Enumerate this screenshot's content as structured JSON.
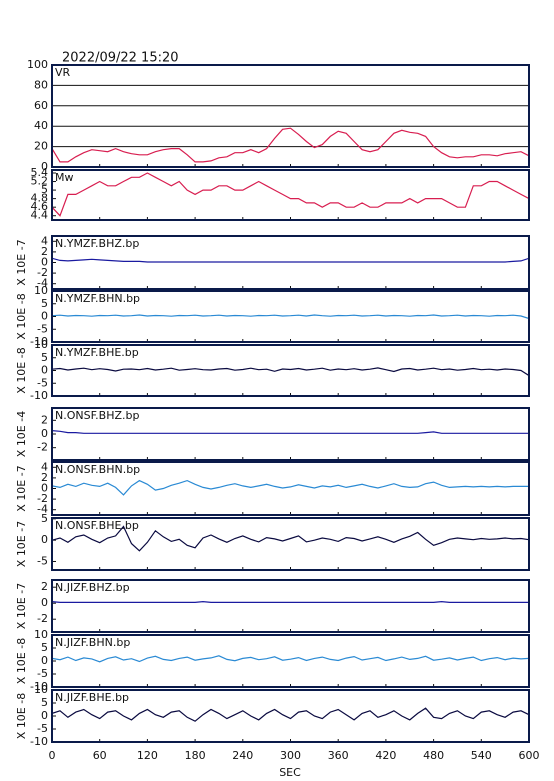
{
  "chart_data": {
    "type": "line",
    "title": "2022/09/22 15:20",
    "xlabel": "SEC",
    "xlim": [
      0,
      600
    ],
    "xticks": [
      0,
      60,
      120,
      180,
      240,
      300,
      360,
      420,
      480,
      540,
      600
    ],
    "x": [
      0,
      10,
      20,
      30,
      40,
      50,
      60,
      70,
      80,
      90,
      100,
      110,
      120,
      130,
      140,
      150,
      160,
      170,
      180,
      190,
      200,
      210,
      220,
      230,
      240,
      250,
      260,
      270,
      280,
      290,
      300,
      310,
      320,
      330,
      340,
      350,
      360,
      370,
      380,
      390,
      400,
      410,
      420,
      430,
      440,
      450,
      460,
      470,
      480,
      490,
      500,
      510,
      520,
      530,
      540,
      550,
      560,
      570,
      580,
      590,
      600
    ],
    "panels": [
      {
        "label": "VR",
        "color": "#d81e50",
        "grid": true,
        "ylim": [
          0,
          100
        ],
        "yticks": [
          0,
          20,
          40,
          60,
          80,
          100
        ],
        "values": [
          18,
          5,
          5,
          10,
          14,
          17,
          16,
          15,
          18,
          15,
          13,
          12,
          12,
          15,
          17,
          18,
          18,
          12,
          5,
          5,
          6,
          9,
          10,
          14,
          14,
          17,
          14,
          18,
          28,
          37,
          38,
          32,
          25,
          19,
          22,
          30,
          35,
          33,
          25,
          17,
          15,
          17,
          25,
          33,
          36,
          34,
          33,
          30,
          20,
          14,
          10,
          9,
          10,
          10,
          12,
          12,
          11,
          13,
          14,
          15,
          11
        ]
      },
      {
        "label": "Mw",
        "color": "#d81e50",
        "grid": false,
        "ylim": [
          4.3,
          5.47
        ],
        "yticks": [
          4.4,
          4.6,
          4.8,
          5,
          5.2,
          5.4
        ],
        "values": [
          4.6,
          4.4,
          4.9,
          4.9,
          5.0,
          5.1,
          5.2,
          5.1,
          5.1,
          5.2,
          5.3,
          5.3,
          5.4,
          5.3,
          5.2,
          5.1,
          5.2,
          5.0,
          4.9,
          5.0,
          5.0,
          5.1,
          5.1,
          5.0,
          5.0,
          5.1,
          5.2,
          5.1,
          5.0,
          4.9,
          4.8,
          4.8,
          4.7,
          4.7,
          4.6,
          4.7,
          4.7,
          4.6,
          4.6,
          4.7,
          4.6,
          4.6,
          4.7,
          4.7,
          4.7,
          4.8,
          4.7,
          4.8,
          4.8,
          4.8,
          4.7,
          4.6,
          4.6,
          5.1,
          5.1,
          5.2,
          5.2,
          5.1,
          5.0,
          4.9,
          4.8
        ]
      },
      {
        "label": "N.YMZF.BHZ.bp",
        "scale_label": "X 10E -7",
        "color": "#1a1aa0",
        "grid": false,
        "ylim": [
          -5,
          5
        ],
        "yticks": [
          -4,
          -2,
          0,
          2,
          4
        ],
        "values": [
          0.8,
          0.4,
          0.3,
          0.4,
          0.5,
          0.6,
          0.5,
          0.4,
          0.3,
          0.2,
          0.2,
          0.2,
          0.1,
          0.1,
          0.1,
          0.1,
          0.1,
          0.1,
          0.1,
          0.1,
          0.1,
          0.1,
          0.1,
          0.1,
          0.1,
          0.1,
          0.1,
          0.1,
          0.1,
          0.1,
          0.1,
          0.1,
          0.1,
          0.1,
          0.1,
          0.1,
          0.1,
          0.1,
          0.1,
          0.1,
          0.1,
          0.1,
          0.1,
          0.1,
          0.1,
          0.1,
          0.1,
          0.1,
          0.1,
          0.1,
          0.1,
          0.1,
          0.1,
          0.1,
          0.1,
          0.1,
          0.1,
          0.1,
          0.2,
          0.3,
          0.8
        ]
      },
      {
        "label": "N.YMZF.BHN.bp",
        "scale_label": "X 10E -8",
        "color": "#2a8ad4",
        "grid": false,
        "ylim": [
          -10,
          10
        ],
        "yticks": [
          -10,
          -5,
          0,
          5,
          10
        ],
        "values": [
          0.3,
          0.5,
          0.2,
          0.4,
          0.3,
          0.1,
          0.4,
          0.3,
          0.5,
          0.2,
          0.3,
          0.6,
          0.2,
          0.4,
          0.3,
          0.1,
          0.4,
          0.3,
          0.5,
          0.2,
          0.3,
          0.5,
          0.2,
          0.4,
          0.3,
          0.1,
          0.4,
          0.3,
          0.5,
          0.2,
          0.3,
          0.5,
          0.2,
          0.6,
          0.3,
          0.1,
          0.4,
          0.3,
          0.5,
          0.2,
          0.3,
          0.5,
          0.2,
          0.4,
          0.3,
          0.1,
          0.4,
          0.3,
          0.6,
          0.2,
          0.3,
          0.5,
          0.2,
          0.4,
          0.3,
          0.1,
          0.4,
          0.3,
          0.5,
          0.2,
          -0.8
        ]
      },
      {
        "label": "N.YMZF.BHE.bp",
        "scale_label": "X 10E -8",
        "color": "#0a0a40",
        "grid": false,
        "ylim": [
          -10,
          10
        ],
        "yticks": [
          -10,
          -5,
          0,
          5,
          10
        ],
        "values": [
          0.5,
          0.8,
          0.2,
          0.6,
          0.9,
          0.3,
          0.7,
          0.4,
          -0.2,
          0.5,
          0.6,
          0.3,
          0.8,
          0.2,
          0.5,
          0.9,
          0.1,
          0.4,
          0.7,
          0.3,
          0.2,
          0.6,
          0.8,
          0.1,
          0.4,
          0.9,
          0.3,
          0.5,
          -0.3,
          0.6,
          0.4,
          0.8,
          0.2,
          0.5,
          0.9,
          0.1,
          0.6,
          0.3,
          0.7,
          0.2,
          0.5,
          1.0,
          0.3,
          -0.4,
          0.6,
          0.8,
          0.2,
          0.5,
          0.9,
          0.3,
          0.6,
          0.1,
          0.4,
          0.8,
          0.3,
          0.5,
          0.2,
          0.6,
          0.4,
          0.0,
          -2.0
        ]
      },
      {
        "label": "N.ONSF.BHZ.bp",
        "scale_label": "X 10E -4",
        "color": "#1a1aa0",
        "grid": false,
        "ylim": [
          -3.8,
          3.8
        ],
        "yticks": [
          -2,
          0,
          2
        ],
        "values": [
          0.5,
          0.4,
          0.2,
          0.2,
          0.1,
          0.1,
          0.1,
          0.1,
          0.1,
          0.1,
          0.1,
          0.1,
          0.1,
          0.1,
          0.1,
          0.1,
          0.1,
          0.1,
          0.1,
          0.1,
          0.1,
          0.1,
          0.1,
          0.1,
          0.1,
          0.1,
          0.1,
          0.1,
          0.1,
          0.1,
          0.1,
          0.1,
          0.1,
          0.1,
          0.1,
          0.1,
          0.1,
          0.1,
          0.1,
          0.1,
          0.1,
          0.1,
          0.1,
          0.1,
          0.1,
          0.1,
          0.1,
          0.2,
          0.3,
          0.1,
          0.1,
          0.1,
          0.1,
          0.1,
          0.1,
          0.1,
          0.1,
          0.1,
          0.1,
          0.1,
          0.1
        ]
      },
      {
        "label": "N.ONSF.BHN.bp",
        "scale_label": "X 10E -7",
        "color": "#2a8ad4",
        "grid": false,
        "ylim": [
          -5,
          5
        ],
        "yticks": [
          -4,
          -2,
          0,
          2,
          4
        ],
        "values": [
          0.5,
          0.2,
          0.8,
          0.4,
          1.0,
          0.6,
          0.4,
          1.0,
          0.2,
          -1.2,
          0.5,
          1.5,
          0.8,
          -0.3,
          0,
          0.6,
          1.0,
          1.5,
          0.8,
          0.2,
          -0.1,
          0.2,
          0.6,
          0.9,
          0.5,
          0.2,
          0.5,
          0.8,
          0.4,
          0.1,
          0.3,
          0.7,
          0.4,
          0.1,
          0.5,
          0.3,
          0.6,
          0.2,
          0.5,
          0.8,
          0.4,
          0.1,
          0.5,
          0.9,
          0.4,
          0.2,
          0.3,
          0.9,
          1.2,
          0.6,
          0.2,
          0.3,
          0.4,
          0.3,
          0.4,
          0.3,
          0.4,
          0.3,
          0.4,
          0.4,
          0.4
        ]
      },
      {
        "label": "N.ONSF.BHE.bp",
        "scale_label": "X 10E -7",
        "color": "#0a0a40",
        "grid": false,
        "ylim": [
          -7,
          5.2
        ],
        "yticks": [
          -5,
          0,
          5
        ],
        "values": [
          0,
          0.5,
          -0.5,
          0.8,
          1.2,
          0.2,
          -0.6,
          0.5,
          1.0,
          3.2,
          -0.8,
          -2.5,
          -0.5,
          2.2,
          0.8,
          -0.3,
          0.2,
          -1.2,
          -1.8,
          0.5,
          1.2,
          0.3,
          -0.5,
          0.4,
          1.0,
          0.2,
          -0.4,
          0.6,
          0.3,
          -0.2,
          0.4,
          1.0,
          -0.4,
          0,
          0.5,
          0.2,
          -0.3,
          0.6,
          0.4,
          -0.2,
          0.3,
          0.8,
          0.2,
          -0.5,
          0.3,
          0.9,
          1.8,
          0.2,
          -1.2,
          -0.6,
          0.2,
          0.5,
          0.3,
          0.1,
          0.4,
          0.2,
          0.3,
          0.5,
          0.3,
          0.4,
          0.1
        ]
      },
      {
        "label": "N.JIZF.BHZ.bp",
        "scale_label": "X 10E -7",
        "color": "#1a1aa0",
        "grid": false,
        "ylim": [
          -3.6,
          2.9
        ],
        "yticks": [
          -2,
          0,
          2
        ],
        "values": [
          0.2,
          0.1,
          0.1,
          0.1,
          0.1,
          0.1,
          0.1,
          0.1,
          0.1,
          0.1,
          0.1,
          0.1,
          0.1,
          0.1,
          0.1,
          0.1,
          0.1,
          0.1,
          0.1,
          0.2,
          0.1,
          0.1,
          0.1,
          0.1,
          0.1,
          0.1,
          0.1,
          0.1,
          0.1,
          0.1,
          0.1,
          0.1,
          0.1,
          0.1,
          0.1,
          0.1,
          0.1,
          0.1,
          0.1,
          0.1,
          0.1,
          0.1,
          0.1,
          0.1,
          0.1,
          0.1,
          0.1,
          0.1,
          0.1,
          0.2,
          0.1,
          0.1,
          0.1,
          0.1,
          0.1,
          0.1,
          0.1,
          0.1,
          0.1,
          0.1,
          0.1
        ]
      },
      {
        "label": "N.JIZF.BHN.bp",
        "scale_label": "X 10E -8",
        "color": "#2a8ad4",
        "grid": false,
        "ylim": [
          -10,
          10
        ],
        "yticks": [
          -10,
          -5,
          0,
          5,
          10
        ],
        "values": [
          1.0,
          0.5,
          1.5,
          0.2,
          1.2,
          0.8,
          -0.3,
          1.0,
          1.6,
          0.4,
          0.9,
          -0.2,
          1.1,
          1.8,
          0.6,
          0.2,
          1.0,
          1.5,
          0.3,
          0.8,
          1.2,
          2.0,
          0.6,
          0.1,
          1.0,
          1.4,
          0.5,
          0.9,
          1.6,
          0.3,
          0.7,
          1.3,
          0.2,
          1.0,
          1.5,
          0.6,
          0.2,
          1.1,
          1.7,
          0.4,
          0.9,
          1.4,
          0.2,
          0.8,
          1.5,
          0.6,
          1.0,
          1.8,
          0.3,
          0.7,
          1.2,
          0.4,
          1.0,
          1.5,
          0.2,
          0.9,
          1.3,
          0.5,
          1.1,
          0.8,
          1.0
        ]
      },
      {
        "label": "N.JIZF.BHE.bp",
        "scale_label": "X 10E -8",
        "color": "#0a0a40",
        "grid": false,
        "ylim": [
          -10,
          10
        ],
        "yticks": [
          -10,
          -5,
          0,
          5,
          10
        ],
        "values": [
          1.0,
          2.0,
          -0.5,
          1.5,
          2.5,
          0.5,
          -1.0,
          1.5,
          2.0,
          0.0,
          -1.5,
          1.0,
          2.5,
          0.5,
          -0.5,
          1.5,
          2.0,
          -0.5,
          -2.0,
          0.5,
          2.5,
          1.0,
          -1.0,
          0.5,
          2.0,
          0.0,
          -1.5,
          1.0,
          2.5,
          0.5,
          -1.0,
          1.5,
          2.0,
          0.0,
          -1.0,
          1.5,
          2.5,
          0.5,
          -1.5,
          1.0,
          2.0,
          -0.5,
          0.5,
          2.0,
          0.0,
          -1.5,
          1.0,
          3.0,
          -0.5,
          -1.0,
          1.0,
          2.0,
          0.0,
          -1.0,
          1.5,
          2.0,
          0.5,
          -0.5,
          1.5,
          2.0,
          0.5
        ]
      }
    ]
  }
}
